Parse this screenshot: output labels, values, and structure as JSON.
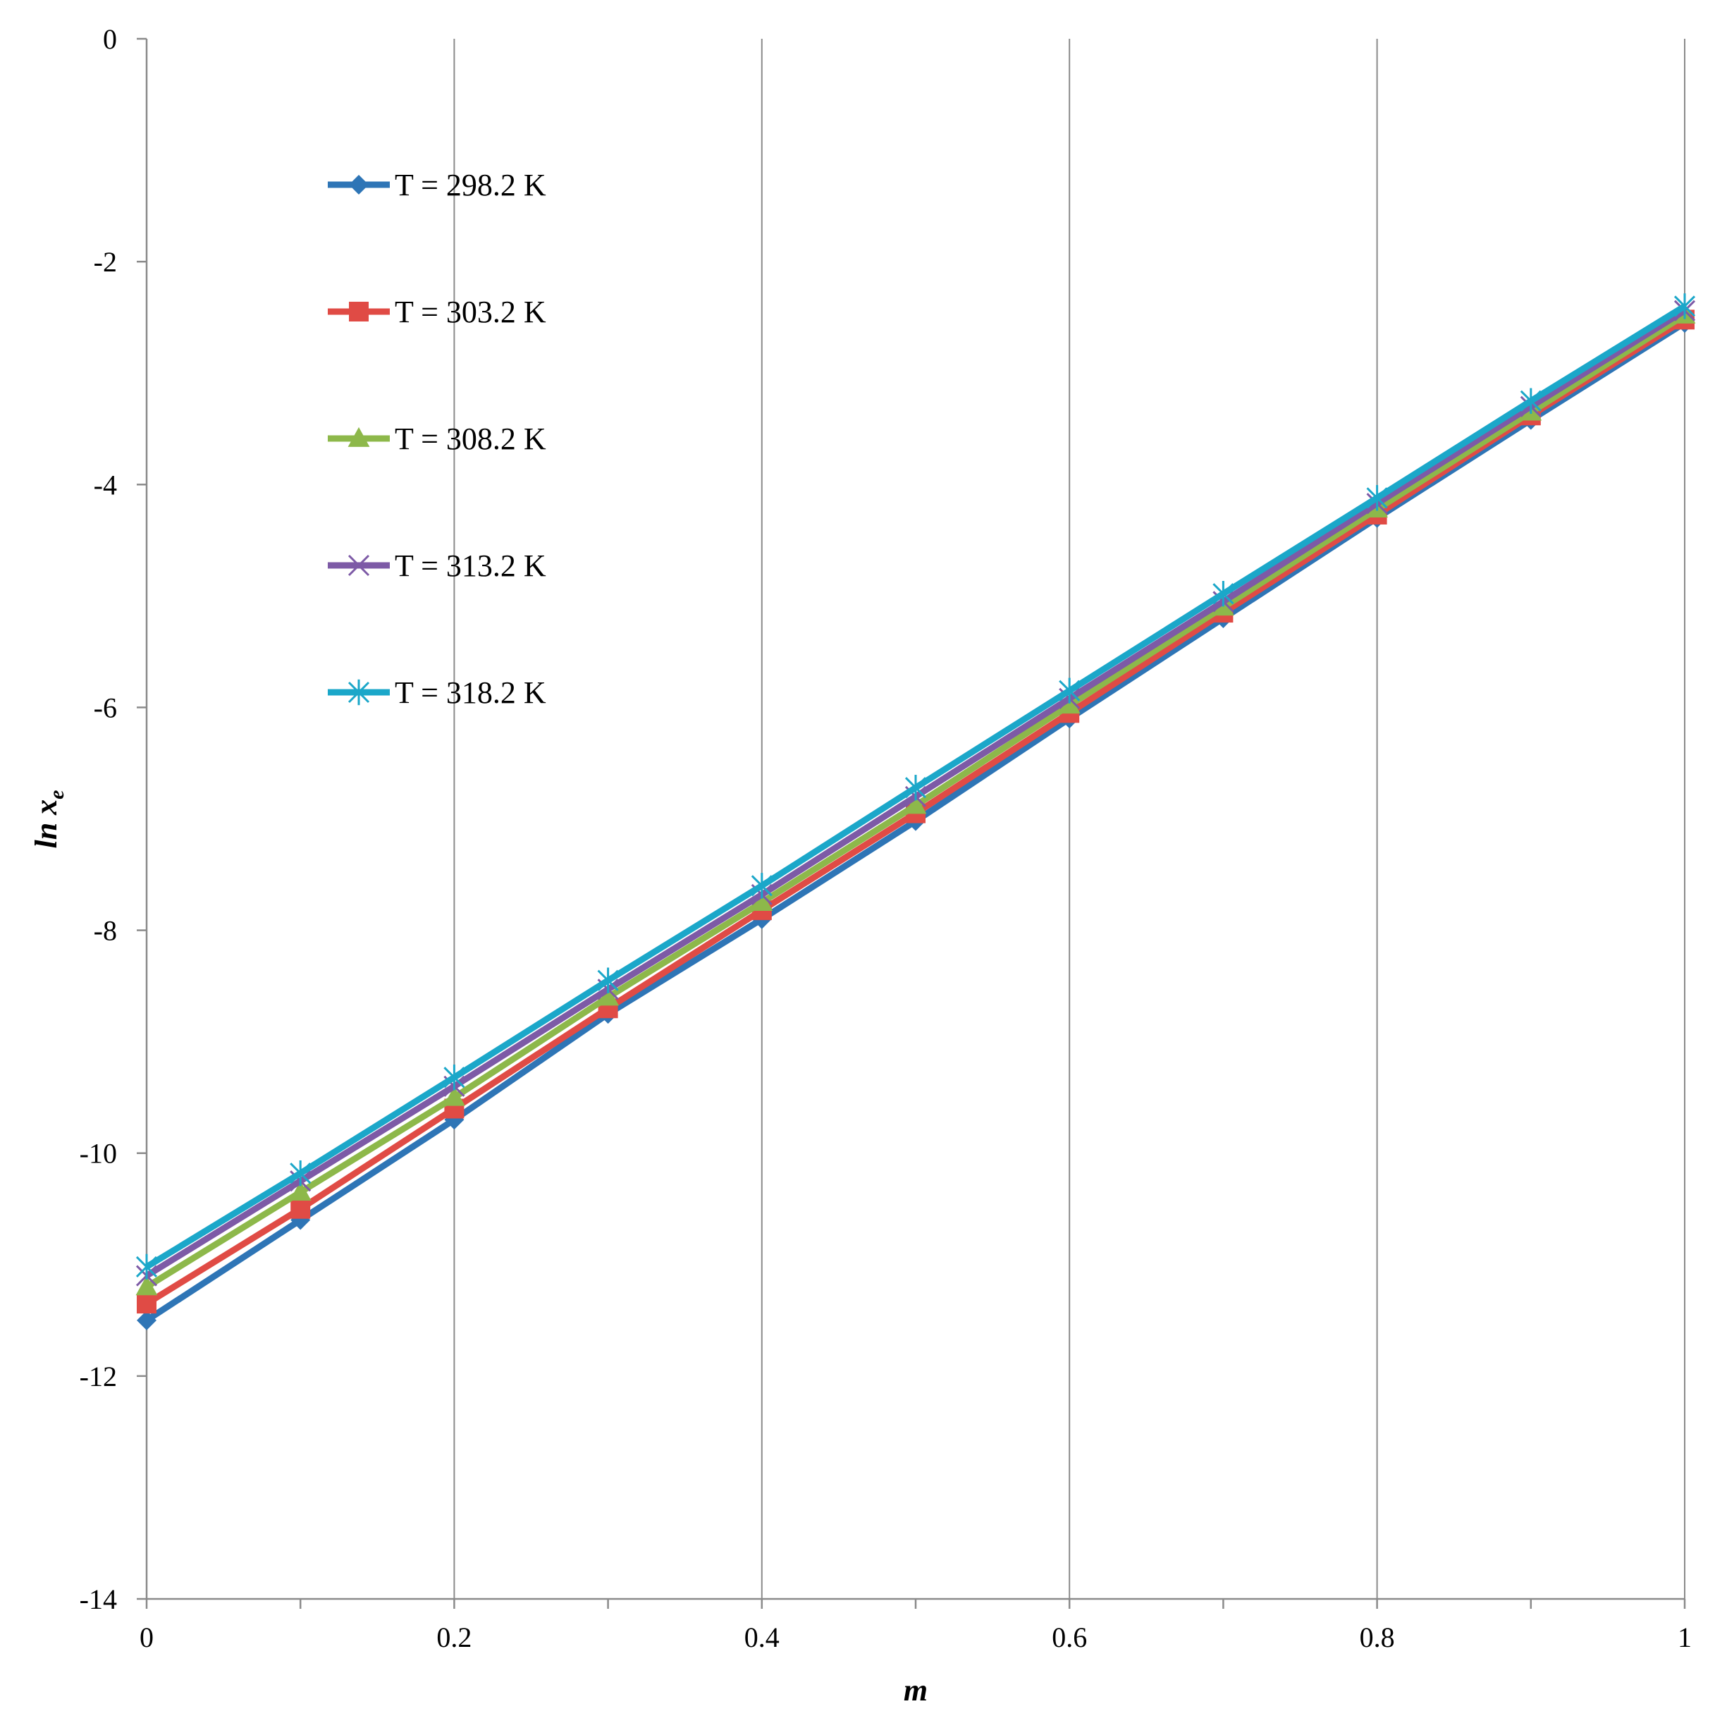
{
  "chart_data": {
    "type": "line",
    "xlabel": "m",
    "ylabel": "ln x",
    "ylabel_subscript": "e",
    "xlim": [
      0,
      1
    ],
    "ylim": [
      -14,
      0
    ],
    "x_ticks": [
      "0",
      "0.2",
      "0.4",
      "0.6",
      "0.8",
      "1"
    ],
    "x_tick_values": [
      0,
      0.2,
      0.4,
      0.6,
      0.8,
      1
    ],
    "y_ticks": [
      "0",
      "-2",
      "-4",
      "-6",
      "-8",
      "-10",
      "-12",
      "-14"
    ],
    "y_tick_values": [
      0,
      -2,
      -4,
      -6,
      -8,
      -10,
      -12,
      -14
    ],
    "grid": {
      "vertical": true,
      "horizontal": false
    },
    "legend_position": "upper-left",
    "x": [
      0,
      0.1,
      0.2,
      0.3,
      0.4,
      0.5,
      0.6,
      0.7,
      0.8,
      0.9,
      1.0
    ],
    "series": [
      {
        "name": "T = 298.2 K",
        "color": "#2e75b6",
        "marker": "diamond",
        "values": [
          -11.5,
          -10.6,
          -9.7,
          -8.75,
          -7.9,
          -7.02,
          -6.1,
          -5.2,
          -4.3,
          -3.42,
          -2.55
        ]
      },
      {
        "name": "T = 303.2 K",
        "color": "#e04b45",
        "marker": "square",
        "values": [
          -11.35,
          -10.5,
          -9.6,
          -8.7,
          -7.82,
          -6.95,
          -6.05,
          -5.15,
          -4.27,
          -3.38,
          -2.52
        ]
      },
      {
        "name": "T = 308.2 K",
        "color": "#8db84a",
        "marker": "triangle",
        "values": [
          -11.2,
          -10.35,
          -9.5,
          -8.6,
          -7.75,
          -6.88,
          -5.98,
          -5.1,
          -4.22,
          -3.35,
          -2.48
        ]
      },
      {
        "name": "T = 313.2 K",
        "color": "#7d5aa6",
        "marker": "x",
        "values": [
          -11.1,
          -10.25,
          -9.4,
          -8.53,
          -7.68,
          -6.8,
          -5.92,
          -5.05,
          -4.17,
          -3.3,
          -2.44
        ]
      },
      {
        "name": "T = 318.2 K",
        "color": "#1ba7c9",
        "marker": "star",
        "values": [
          -11.02,
          -10.18,
          -9.32,
          -8.45,
          -7.6,
          -6.72,
          -5.85,
          -4.98,
          -4.12,
          -3.25,
          -2.4
        ]
      }
    ]
  }
}
